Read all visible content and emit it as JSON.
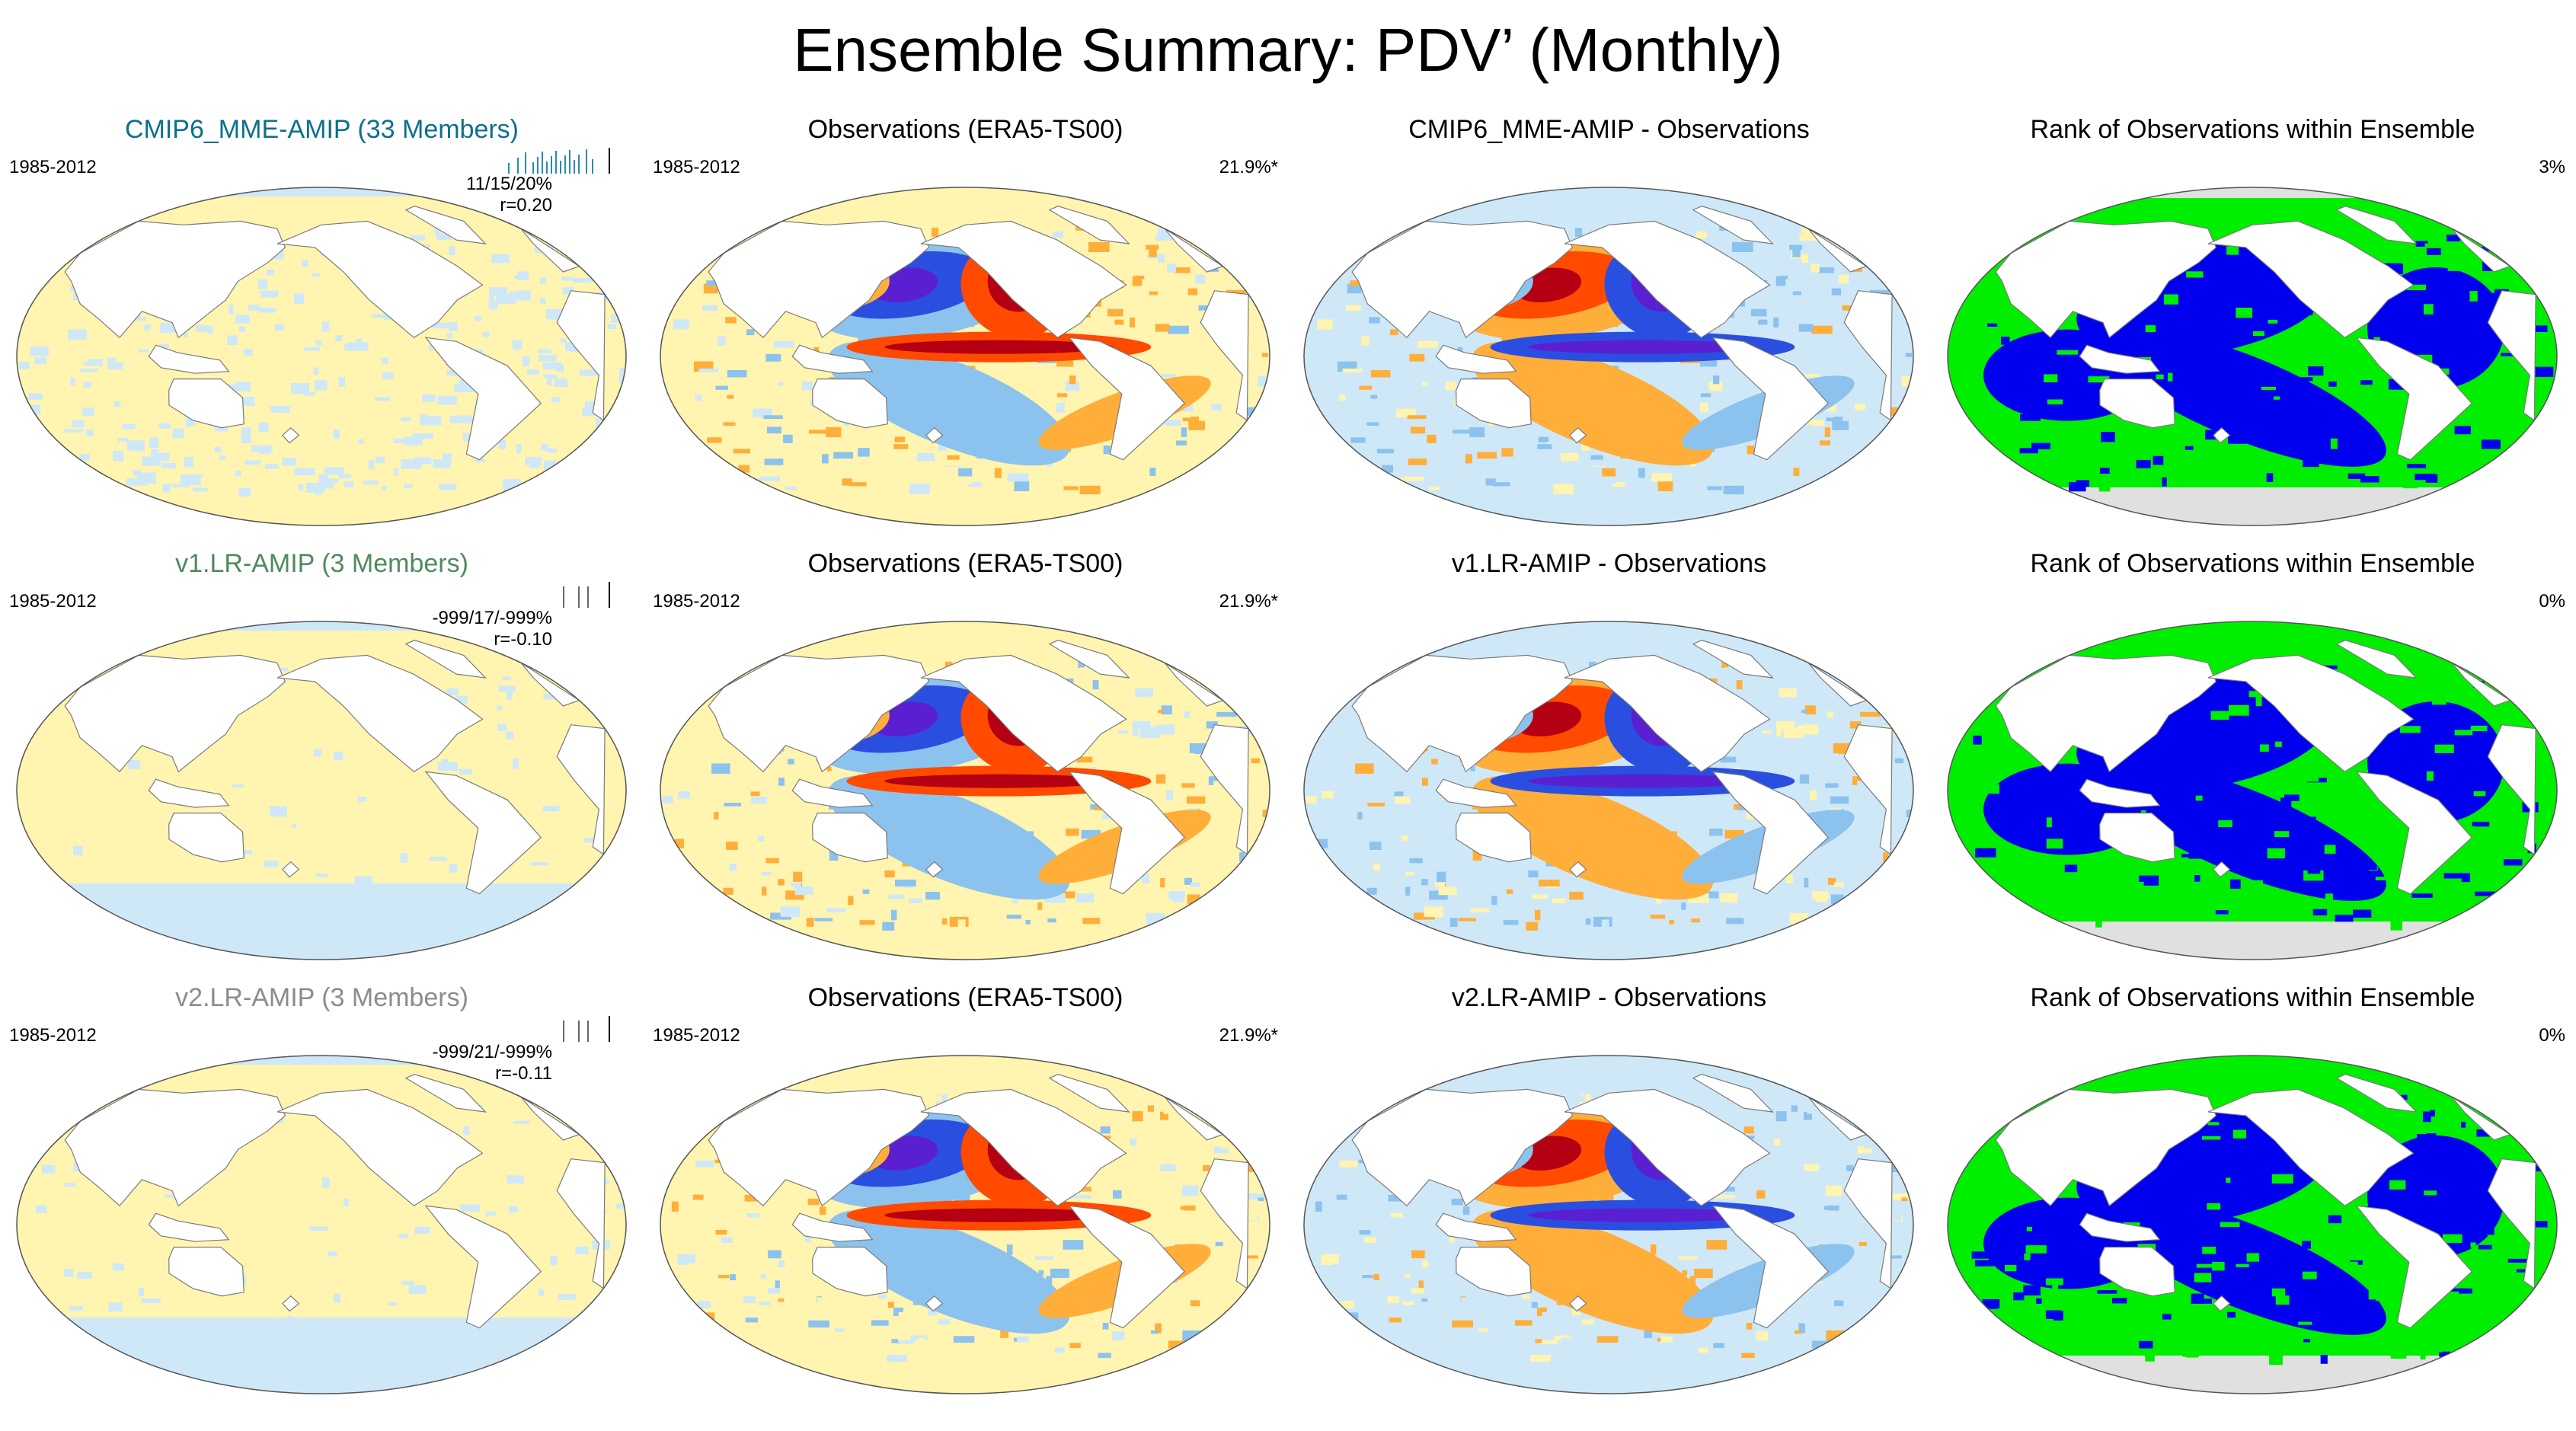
{
  "title": "Ensemble Summary: PDV’ (Monthly)",
  "colors": {
    "model_mme": "#0e6f8c",
    "model_v1": "#4f8a5e",
    "model_v2": "#8c8c8c",
    "warm_dark": "#b40012",
    "warm": "#ff4a00",
    "warm_mid": "#ffae3a",
    "warm_light": "#fff4b0",
    "cool_light": "#cfe8f8",
    "cool": "#8cc2ee",
    "cool_dark": "#2a4fe0",
    "cool_deep": "#5a1fd0",
    "rank_low": "#0000ee",
    "rank_high": "#00ee00",
    "rank_none": "#e0e0e0",
    "land": "#ffffff"
  },
  "rows": [
    {
      "model_title": "CMIP6_MME-AMIP (33 Members)",
      "model_color_key": "model_mme",
      "period": "1985-2012",
      "counts": "11/15/20%",
      "r": "r=0.20",
      "obs_title": "Observations (ERA5-TS00)",
      "obs_period": "1985-2012",
      "obs_stat": "21.9%*",
      "diff_title": "CMIP6_MME-AMIP - Observations",
      "rank_title": "Rank of Observations within Ensemble",
      "rank_stat": "3%"
    },
    {
      "model_title": "v1.LR-AMIP (3 Members)",
      "model_color_key": "model_v1",
      "period": "1985-2012",
      "counts": "-999/17/-999%",
      "r": "r=-0.10",
      "obs_title": "Observations (ERA5-TS00)",
      "obs_period": "1985-2012",
      "obs_stat": "21.9%*",
      "diff_title": "v1.LR-AMIP - Observations",
      "rank_title": "Rank of Observations within Ensemble",
      "rank_stat": "0%"
    },
    {
      "model_title": "v2.LR-AMIP (3 Members)",
      "model_color_key": "model_v2",
      "period": "1985-2012",
      "counts": "-999/21/-999%",
      "r": "r=-0.11",
      "obs_title": "Observations (ERA5-TS00)",
      "obs_period": "1985-2012",
      "obs_stat": "21.9%*",
      "diff_title": "v2.LR-AMIP - Observations",
      "rank_title": "Rank of Observations within Ensemble",
      "rank_stat": "0%"
    }
  ]
}
